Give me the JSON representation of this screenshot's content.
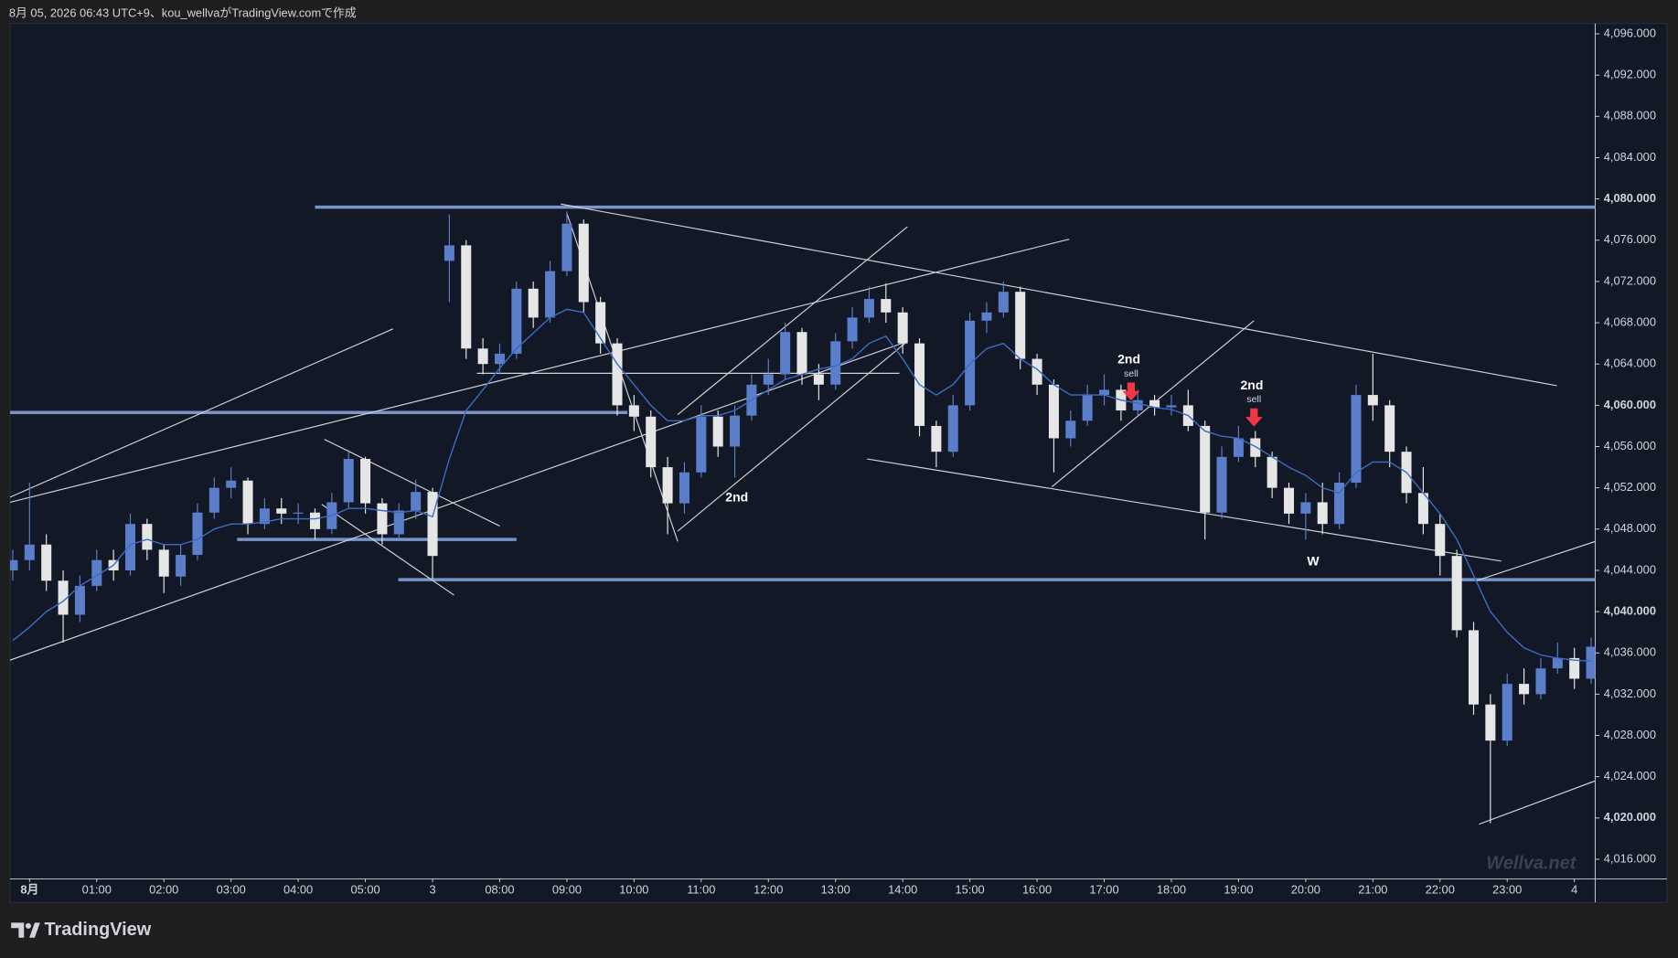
{
  "header": {
    "text": "8月 05, 2026 06:43 UTC+9、kou_wellvaがTradingView.comで作成"
  },
  "footer": {
    "brand": "TradingView"
  },
  "chart_data": {
    "type": "candlestick",
    "watermark": "Wellva.net",
    "up_color": "#5a7ec9",
    "down_color": "#e6e6e6",
    "ma_color": "#3d6bc2",
    "level_color": "#7a93c8",
    "line_color": "#cfd2d8",
    "signal_color": "#f23645",
    "xlim": [
      -0.29,
      23.31
    ],
    "ylim": [
      4014.1,
      4097.0
    ],
    "yticks": [
      {
        "value": 4016,
        "label": "4,016.000"
      },
      {
        "value": 4020,
        "label": "4,020.000"
      },
      {
        "value": 4024,
        "label": "4,024.000"
      },
      {
        "value": 4028,
        "label": "4,028.000"
      },
      {
        "value": 4032,
        "label": "4,032.000"
      },
      {
        "value": 4036,
        "label": "4,036.000"
      },
      {
        "value": 4040,
        "label": "4,040.000"
      },
      {
        "value": 4044,
        "label": "4,044.000"
      },
      {
        "value": 4048,
        "label": "4,048.000"
      },
      {
        "value": 4052,
        "label": "4,052.000"
      },
      {
        "value": 4056,
        "label": "4,056.000"
      },
      {
        "value": 4060,
        "label": "4,060.000"
      },
      {
        "value": 4064,
        "label": "4,064.000"
      },
      {
        "value": 4068,
        "label": "4,068.000"
      },
      {
        "value": 4072,
        "label": "4,072.000"
      },
      {
        "value": 4076,
        "label": "4,076.000"
      },
      {
        "value": 4080,
        "label": "4,080.000"
      },
      {
        "value": 4084,
        "label": "4,084.000"
      },
      {
        "value": 4088,
        "label": "4,088.000"
      },
      {
        "value": 4092,
        "label": "4,092.000"
      },
      {
        "value": 4096,
        "label": "4,096.000"
      }
    ],
    "bold_ticks": [
      4020,
      4040,
      4060,
      4080
    ],
    "xticks": [
      {
        "value": 0,
        "label": "8月"
      },
      {
        "value": 1,
        "label": "01:00"
      },
      {
        "value": 2,
        "label": "02:00"
      },
      {
        "value": 3,
        "label": "03:00"
      },
      {
        "value": 4,
        "label": "04:00"
      },
      {
        "value": 5,
        "label": "05:00"
      },
      {
        "value": 6,
        "label": "3"
      },
      {
        "value": 7,
        "label": "08:00"
      },
      {
        "value": 8,
        "label": "09:00"
      },
      {
        "value": 9,
        "label": "10:00"
      },
      {
        "value": 10,
        "label": "11:00"
      },
      {
        "value": 11,
        "label": "12:00"
      },
      {
        "value": 12,
        "label": "13:00"
      },
      {
        "value": 13,
        "label": "14:00"
      },
      {
        "value": 14,
        "label": "15:00"
      },
      {
        "value": 15,
        "label": "16:00"
      },
      {
        "value": 16,
        "label": "17:00"
      },
      {
        "value": 17,
        "label": "18:00"
      },
      {
        "value": 18,
        "label": "19:00"
      },
      {
        "value": 19,
        "label": "20:00"
      },
      {
        "value": 20,
        "label": "21:00"
      },
      {
        "value": 21,
        "label": "22:00"
      },
      {
        "value": 22,
        "label": "23:00"
      },
      {
        "value": 23,
        "label": "4"
      }
    ],
    "x": [
      -0.25,
      0,
      0.25,
      0.5,
      0.75,
      1,
      1.25,
      1.5,
      1.75,
      2,
      2.25,
      2.5,
      2.75,
      3,
      3.25,
      3.5,
      3.75,
      4,
      4.25,
      4.5,
      4.75,
      5,
      5.25,
      5.5,
      5.75,
      6,
      6.25,
      6.5,
      6.75,
      7,
      7.25,
      7.5,
      7.75,
      8,
      8.25,
      8.5,
      8.75,
      9,
      9.25,
      9.5,
      9.75,
      10,
      10.25,
      10.5,
      10.75,
      11,
      11.25,
      11.5,
      11.75,
      12,
      12.25,
      12.5,
      12.75,
      13,
      13.25,
      13.5,
      13.75,
      14,
      14.25,
      14.5,
      14.75,
      15,
      15.25,
      15.5,
      15.75,
      16,
      16.25,
      16.5,
      16.75,
      17,
      17.25,
      17.5,
      17.75,
      18,
      18.25,
      18.5,
      18.75,
      19,
      19.25,
      19.5,
      19.75,
      20,
      20.25,
      20.5,
      20.75,
      21,
      21.25,
      21.5,
      21.75,
      22,
      22.25,
      22.5,
      22.75,
      23,
      23.25
    ],
    "open": [
      4044,
      4045,
      4046.5,
      4043,
      4039.7,
      4042.5,
      4045,
      4044,
      4048.5,
      4046,
      4043.4,
      4045.5,
      4049.6,
      4052,
      4052.7,
      4048.5,
      4050,
      4049.5,
      4049.6,
      4048,
      4050.6,
      4054.8,
      4050.5,
      4047.5,
      4049.8,
      4051.6,
      4074,
      4075.5,
      4065.5,
      4064,
      4065,
      4071.3,
      4068.5,
      4073,
      4077.6,
      4070,
      4066,
      4060,
      4058.9,
      4054,
      4050.5,
      4053.5,
      4058.9,
      4056,
      4059,
      4062,
      4063,
      4067.1,
      4063,
      4062,
      4066.2,
      4068.5,
      4070.3,
      4069,
      4066,
      4058,
      4055.5,
      4060,
      4068.2,
      4069,
      4071,
      4064.5,
      4062,
      4056.8,
      4058.5,
      4061,
      4061.5,
      4059.5,
      4060.5,
      4059.8,
      4060,
      4058,
      4049.6,
      4055,
      4056.8,
      4055,
      4052,
      4049.5,
      4050.6,
      4048.5,
      4052.5,
      4061,
      4060,
      4055.5,
      4051.5,
      4048.5,
      4045.4,
      4038.2,
      4031,
      4027.5,
      4033,
      4032,
      4034.5,
      4035.5,
      4033.5
    ],
    "high": [
      4046,
      4052.5,
      4047.5,
      4044,
      4043.5,
      4046,
      4046,
      4049.5,
      4049,
      4046.5,
      4046.5,
      4050.5,
      4053,
      4054,
      4053,
      4051,
      4051,
      4050.5,
      4050,
      4051.5,
      4055.7,
      4055,
      4051,
      4050.5,
      4052.8,
      4052,
      4078.5,
      4076,
      4066.5,
      4066,
      4072,
      4072,
      4074,
      4078.8,
      4078,
      4070.5,
      4066.5,
      4061,
      4059.5,
      4055,
      4054.5,
      4060,
      4059.5,
      4060,
      4063,
      4064.5,
      4068,
      4067.5,
      4064,
      4067,
      4069.5,
      4071.5,
      4071.8,
      4069.5,
      4066.5,
      4058.5,
      4061,
      4069,
      4070,
      4072,
      4071.5,
      4065,
      4062.5,
      4059.5,
      4062,
      4063,
      4062,
      4061.5,
      4061,
      4061,
      4061.5,
      4058.5,
      4056,
      4058,
      4057.5,
      4055.5,
      4052.5,
      4051.5,
      4052.5,
      4053.5,
      4062,
      4065,
      4060.5,
      4056,
      4054,
      4049.5,
      4046,
      4039,
      4032,
      4034,
      4034.5,
      4035.5,
      4037,
      4036.5,
      4037.5
    ],
    "low": [
      4043,
      4044,
      4042,
      4037,
      4039,
      4042,
      4043,
      4043.5,
      4045,
      4041.8,
      4042.5,
      4045,
      4049,
      4051,
      4047.5,
      4048,
      4048.5,
      4048.5,
      4047,
      4047.5,
      4050,
      4049.5,
      4046.5,
      4047,
      4049,
      4043.2,
      4070,
      4064.5,
      4063,
      4063,
      4064.5,
      4067.5,
      4068,
      4072.5,
      4069,
      4065,
      4059,
      4057.5,
      4053,
      4047.5,
      4049.5,
      4053,
      4055,
      4053,
      4058.5,
      4061,
      4062.5,
      4062,
      4060.5,
      4061.5,
      4065.5,
      4068,
      4068,
      4065,
      4057,
      4054,
      4055,
      4059.5,
      4067,
      4068.5,
      4063.5,
      4061,
      4053.5,
      4056,
      4058,
      4060,
      4058.5,
      4059,
      4059,
      4059,
      4057.5,
      4047,
      4049,
      4054.5,
      4054,
      4051,
      4048.5,
      4047,
      4047.5,
      4048,
      4052,
      4058.5,
      4054,
      4050.5,
      4047.5,
      4043.5,
      4037.5,
      4030,
      4019.5,
      4027,
      4031,
      4031.5,
      4034,
      4032.5,
      4033
    ],
    "close": [
      4045,
      4046.5,
      4043,
      4039.7,
      4042.5,
      4045,
      4044,
      4048.5,
      4046,
      4043.4,
      4045.5,
      4049.6,
      4052,
      4052.7,
      4048.5,
      4050,
      4049.5,
      4049.6,
      4048,
      4050.6,
      4054.8,
      4050.5,
      4047.5,
      4049.8,
      4051.6,
      4045.4,
      4075.5,
      4065.5,
      4064,
      4065,
      4071.3,
      4068.5,
      4073,
      4077.6,
      4070,
      4066,
      4060,
      4058.9,
      4054,
      4050.5,
      4053.5,
      4058.9,
      4056,
      4059,
      4062,
      4063,
      4067.1,
      4063,
      4062,
      4066.2,
      4068.5,
      4070.3,
      4069,
      4066,
      4058,
      4055.5,
      4060,
      4068.2,
      4069,
      4071,
      4064.5,
      4062,
      4056.8,
      4058.5,
      4061,
      4061.5,
      4059.5,
      4060.5,
      4059.8,
      4060,
      4058,
      4049.6,
      4055,
      4056.8,
      4055,
      4052,
      4049.5,
      4050.6,
      4048.5,
      4052.5,
      4061,
      4060,
      4055.5,
      4051.5,
      4048.5,
      4045.4,
      4038.2,
      4031,
      4027.5,
      4033,
      4032,
      4034.5,
      4035.5,
      4033.5,
      4036.6
    ],
    "ma": [
      4037.2,
      4038.5,
      4040,
      4041,
      4042.5,
      4043.5,
      4044.5,
      4046.5,
      4047,
      4046.5,
      4046.5,
      4047,
      4048,
      4048.5,
      4048.5,
      4048.7,
      4049,
      4049,
      4049,
      4049.3,
      4050,
      4050,
      4049.8,
      4049.6,
      4049.8,
      4049.2,
      4054.8,
      4059.5,
      4061.5,
      4063.6,
      4065.5,
      4067,
      4068.5,
      4069.3,
      4069,
      4066.5,
      4064,
      4062,
      4060,
      4058.5,
      4058.5,
      4059,
      4059,
      4059.5,
      4060.5,
      4061.5,
      4062.5,
      4063,
      4063.5,
      4063.8,
      4064.5,
      4066,
      4066.7,
      4064.5,
      4062,
      4061,
      4062,
      4064,
      4065.5,
      4066,
      4064.5,
      4063.5,
      4062,
      4061,
      4061,
      4061,
      4060.5,
      4060.2,
      4059.8,
      4059.6,
      4059,
      4057.5,
      4057,
      4056.8,
      4056,
      4055,
      4054,
      4053.2,
      4052,
      4051.5,
      4053.5,
      4054.5,
      4054.5,
      4053.5,
      4051.5,
      4049.5,
      4047,
      4043.5,
      4040,
      4038,
      4036.5,
      4035.8,
      4035.5,
      4035.3,
      4035.2
    ],
    "levels": [
      {
        "y": 4079.2,
        "x": [
          4.25,
          23.31
        ]
      },
      {
        "y": 4059.3,
        "x": [
          -0.29,
          8.9
        ]
      },
      {
        "y": 4047.0,
        "x": [
          3.09,
          7.25
        ]
      },
      {
        "y": 4043.1,
        "x": [
          5.49,
          23.31
        ]
      }
    ],
    "lines": [
      {
        "x": [
          -0.29,
          5.41
        ],
        "y": [
          4051.1,
          4067.4
        ]
      },
      {
        "x": [
          -0.29,
          15.48
        ],
        "y": [
          4050.6,
          4076.1
        ]
      },
      {
        "x": [
          -0.29,
          13.03
        ],
        "y": [
          4035.3,
          4066.1
        ]
      },
      {
        "x": [
          4.39,
          7.0
        ],
        "y": [
          4056.7,
          4048.3
        ]
      },
      {
        "x": [
          4.35,
          6.32
        ],
        "y": [
          4050.4,
          4041.6
        ]
      },
      {
        "x": [
          7.91,
          22.74
        ],
        "y": [
          4079.5,
          4061.9
        ]
      },
      {
        "x": [
          8.0,
          9.65
        ],
        "y": [
          4078.6,
          4046.8
        ]
      },
      {
        "x": [
          9.65,
          13.07
        ],
        "y": [
          4059.1,
          4077.3
        ]
      },
      {
        "x": [
          9.65,
          13.07
        ],
        "y": [
          4047.8,
          4066.2
        ]
      },
      {
        "x": [
          12.47,
          21.91
        ],
        "y": [
          4054.8,
          4044.9
        ]
      },
      {
        "x": [
          15.22,
          18.23
        ],
        "y": [
          4052.1,
          4068.2
        ]
      },
      {
        "x": [
          21.54,
          23.31
        ],
        "y": [
          4043.0,
          4046.8
        ]
      },
      {
        "x": [
          21.58,
          23.31
        ],
        "y": [
          4019.4,
          4023.6
        ]
      },
      {
        "x": [
          6.66,
          12.95
        ],
        "y": [
          4063.1,
          4063.1
        ]
      }
    ],
    "annotations": [
      {
        "text": "2nd",
        "x": 10.53,
        "y": 4051.0
      },
      {
        "text": "W",
        "x": 19.11,
        "y": 4044.8
      }
    ],
    "signals": [
      {
        "label": "2nd",
        "sub": "sell",
        "x": 16.4,
        "y": 4062.2
      },
      {
        "label": "2nd",
        "sub": "sell",
        "x": 18.23,
        "y": 4059.7
      }
    ]
  }
}
